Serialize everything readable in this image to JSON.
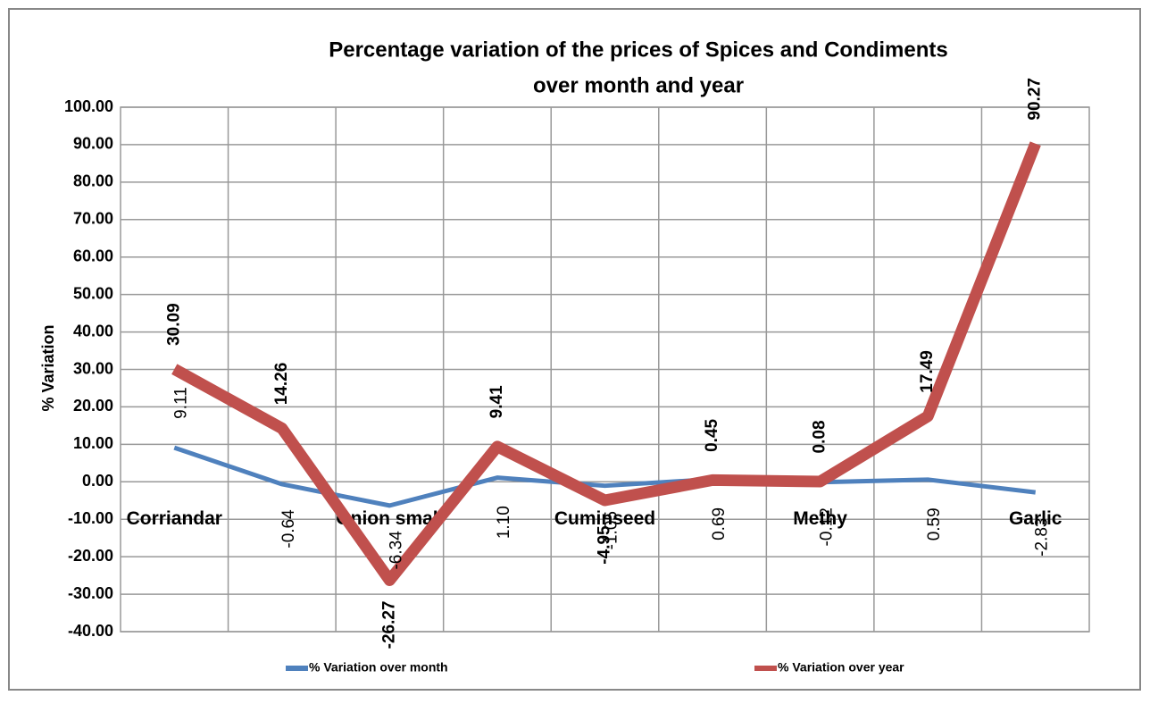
{
  "chart_data": {
    "type": "line",
    "title": "Percentage variation of the prices of Spices and Condiments",
    "subtitle": "over month and year",
    "y_label": "% Variation",
    "categories": [
      "Corriandar",
      null,
      "Onion small",
      null,
      "Cuminseed",
      null,
      "Methy",
      null,
      "Garlic"
    ],
    "series": [
      {
        "name": "% Variation over month",
        "color": "#4f81bd",
        "values": [
          9.11,
          -0.64,
          -6.34,
          1.1,
          -1.05,
          0.69,
          -0.12,
          0.59,
          -2.83
        ],
        "value_labels": [
          "9.11",
          "-0.64",
          "-6.34",
          "1.10",
          "-1.05",
          "0.69",
          "-0.12",
          "0.59",
          "-2.83"
        ]
      },
      {
        "name": "% Variation over year",
        "color": "#c0504d",
        "values": [
          30.09,
          14.26,
          -26.27,
          9.41,
          -4.95,
          0.45,
          0.08,
          17.49,
          90.27
        ],
        "value_labels": [
          "30.09",
          "14.26",
          "-26.27",
          "9.41",
          "-4.95",
          "0.45",
          "0.08",
          "17.49",
          "90.27"
        ]
      }
    ],
    "ylim": [
      -40,
      100
    ],
    "yticks": [
      {
        "value": -40,
        "label": "-40.00"
      },
      {
        "value": -30,
        "label": "-30.00"
      },
      {
        "value": -20,
        "label": "-20.00"
      },
      {
        "value": -10,
        "label": "-10.00"
      },
      {
        "value": 0,
        "label": "0.00"
      },
      {
        "value": 10,
        "label": "10.00"
      },
      {
        "value": 20,
        "label": "20.00"
      },
      {
        "value": 30,
        "label": "30.00"
      },
      {
        "value": 40,
        "label": "40.00"
      },
      {
        "value": 50,
        "label": "50.00"
      },
      {
        "value": 60,
        "label": "60.00"
      },
      {
        "value": 70,
        "label": "70.00"
      },
      {
        "value": 80,
        "label": "80.00"
      },
      {
        "value": 90,
        "label": "90.00"
      },
      {
        "value": 100,
        "label": "100.00"
      }
    ],
    "grid": true,
    "legend": "bottom"
  }
}
